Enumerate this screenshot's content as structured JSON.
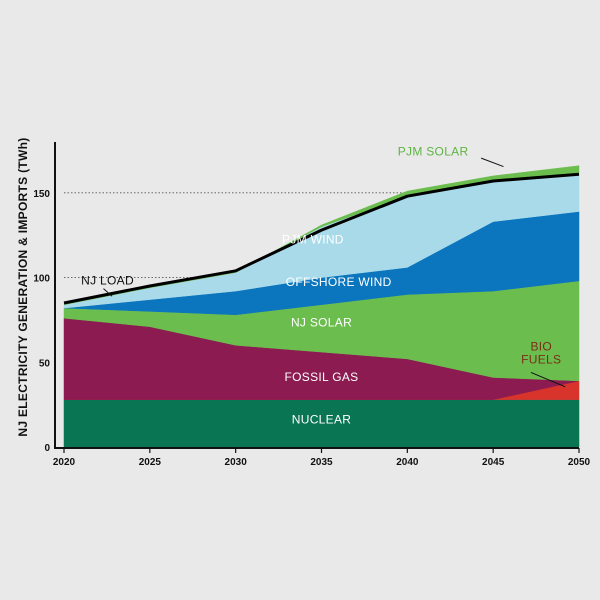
{
  "chart_data": {
    "type": "area",
    "ylabel": "NJ ELECTRICITY GENERATION & IMPORTS (TWh)",
    "xlabel": "",
    "x": [
      2020,
      2025,
      2030,
      2035,
      2040,
      2045,
      2050
    ],
    "x_ticks": [
      "2020",
      "2025",
      "2030",
      "2035",
      "2040",
      "2045",
      "2050"
    ],
    "y_ticks": [
      "0",
      "50",
      "100",
      "150"
    ],
    "ylim": [
      0,
      180
    ],
    "grid": "dotted lines at 100 and 150",
    "stack_order": [
      "nuclear",
      "bio_fuels",
      "fossil_gas",
      "nj_solar",
      "offshore_wind",
      "pjm_wind",
      "pjm_solar"
    ],
    "series": {
      "nuclear": {
        "name": "NUCLEAR",
        "color": "#0a7553",
        "label_color": "#ffffff",
        "values": [
          28,
          28,
          28,
          28,
          28,
          28,
          28
        ]
      },
      "bio_fuels": {
        "name": "BIO\nFUELS",
        "color": "#d8342c",
        "label_color": "#7a2e17",
        "values": [
          0,
          0,
          0,
          0,
          0,
          0,
          11
        ]
      },
      "fossil_gas": {
        "name": "FOSSIL GAS",
        "color": "#8b1b50",
        "label_color": "#ffffff",
        "values": [
          48,
          43,
          32,
          28,
          24,
          13,
          0
        ]
      },
      "nj_solar": {
        "name": "NJ SOLAR",
        "color": "#6bbd4e",
        "label_color": "#ffffff",
        "values": [
          6,
          9,
          18,
          28,
          38,
          51,
          59
        ]
      },
      "offshore_wind": {
        "name": "OFFSHORE WIND",
        "color": "#0b76be",
        "label_color": "#ffffff",
        "values": [
          0,
          7,
          14,
          16,
          16,
          41,
          41
        ]
      },
      "pjm_wind": {
        "name": "PJM WIND",
        "color": "#a9daea",
        "label_color": "#ffffff",
        "values": [
          2,
          7,
          11,
          30,
          42,
          24,
          23
        ]
      },
      "pjm_solar": {
        "name": "PJM SOLAR",
        "color": "#6bbd4e",
        "label_color": "#5fb443",
        "values": [
          0,
          0,
          0,
          1,
          3,
          3,
          4
        ]
      }
    },
    "load_line": {
      "name": "NJ LOAD",
      "color": "#000000",
      "values": [
        85,
        95,
        104,
        128,
        148,
        157,
        161
      ]
    }
  }
}
